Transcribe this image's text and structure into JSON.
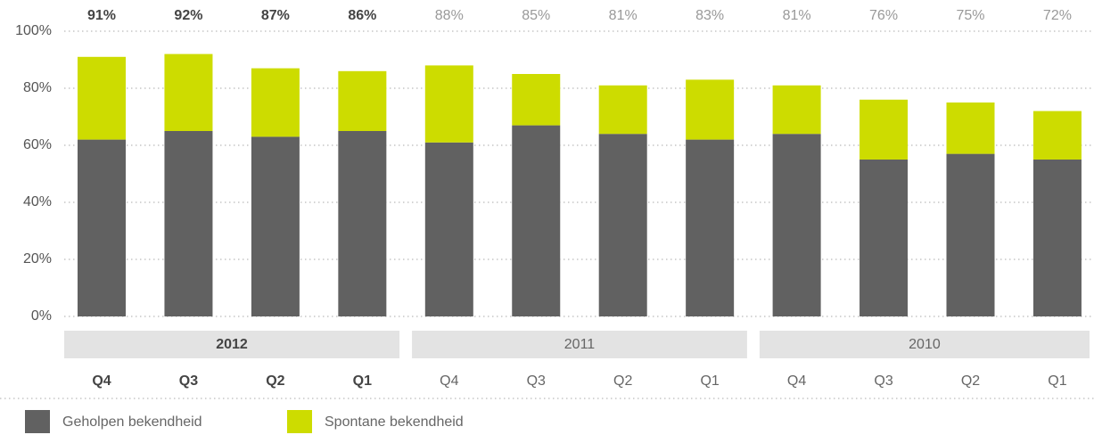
{
  "chart_data": {
    "type": "stacked_bar",
    "categories": [
      "Q4",
      "Q3",
      "Q2",
      "Q1",
      "Q4",
      "Q3",
      "Q2",
      "Q1",
      "Q4",
      "Q3",
      "Q2",
      "Q1"
    ],
    "groups": [
      {
        "label": "2012",
        "size": 4
      },
      {
        "label": "2011",
        "size": 4
      },
      {
        "label": "2010",
        "size": 4
      }
    ],
    "series": [
      {
        "name": "Geholpen bekendheid",
        "color": "#616161",
        "values": [
          62,
          65,
          63,
          65,
          61,
          67,
          64,
          62,
          64,
          55,
          57,
          55
        ]
      },
      {
        "name": "Spontane bekendheid",
        "color": "#cddc00",
        "values": [
          29,
          27,
          24,
          21,
          27,
          18,
          17,
          21,
          17,
          21,
          18,
          17
        ]
      }
    ],
    "total_labels": [
      "91%",
      "92%",
      "87%",
      "86%",
      "88%",
      "85%",
      "81%",
      "83%",
      "81%",
      "76%",
      "75%",
      "72%"
    ],
    "ylim": [
      0,
      100
    ],
    "yticks": [
      {
        "value": 0,
        "label": "0%"
      },
      {
        "value": 20,
        "label": "20%"
      },
      {
        "value": 40,
        "label": "40%"
      },
      {
        "value": 60,
        "label": "60%"
      },
      {
        "value": 80,
        "label": "80%"
      },
      {
        "value": 100,
        "label": "100%"
      }
    ],
    "grid": true
  }
}
